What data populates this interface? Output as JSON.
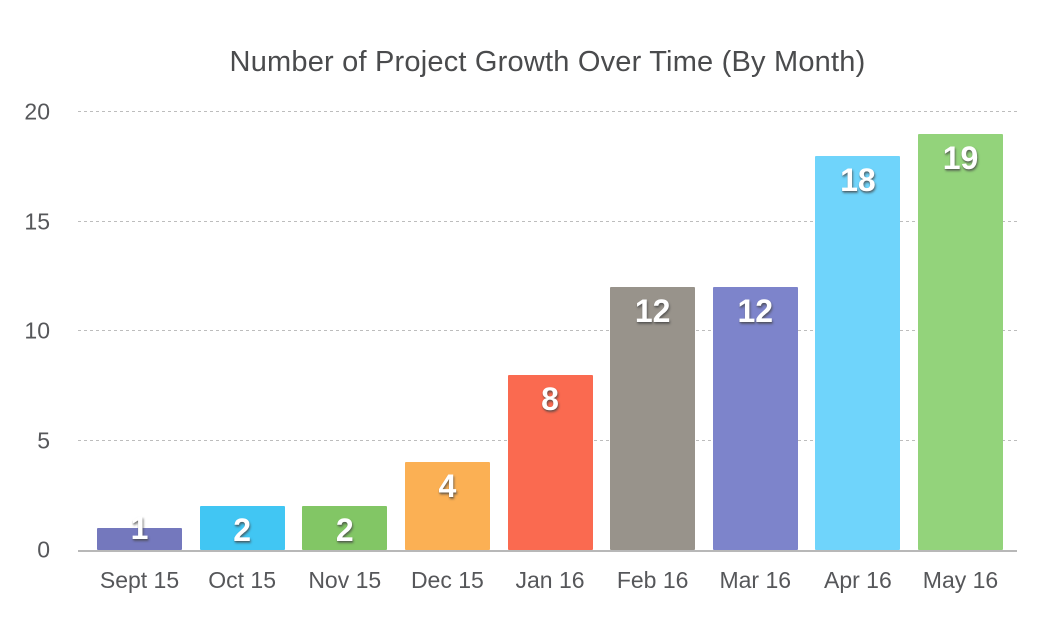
{
  "chart_data": {
    "type": "bar",
    "title": "Number of Project Growth Over Time (By Month)",
    "categories": [
      "Sept 15",
      "Oct 15",
      "Nov 15",
      "Dec 15",
      "Jan 16",
      "Feb 16",
      "Mar 16",
      "Apr 16",
      "May 16"
    ],
    "values": [
      1,
      2,
      2,
      4,
      8,
      12,
      12,
      18,
      19
    ],
    "bar_colors": [
      "#7478bd",
      "#41c6f3",
      "#82c665",
      "#fbb054",
      "#fa6a50",
      "#98938b",
      "#7d84cb",
      "#6fd4fb",
      "#93d37b"
    ],
    "value_labels": [
      "1",
      "2",
      "2",
      "4",
      "8",
      "12",
      "12",
      "18",
      "19"
    ],
    "y_ticks": [
      0,
      5,
      10,
      15,
      20
    ],
    "ylim": [
      0,
      20
    ],
    "xlabel": "",
    "ylabel": "",
    "grid": "dashed-horizontal",
    "legend": "none",
    "value_label_color": "#ffffff"
  },
  "colors": {
    "background": "#ffffff",
    "title_text": "#4a4b4d",
    "axis_text": "#56575a",
    "gridline": "#bdbdbd",
    "baseline": "#b8b8b8"
  }
}
